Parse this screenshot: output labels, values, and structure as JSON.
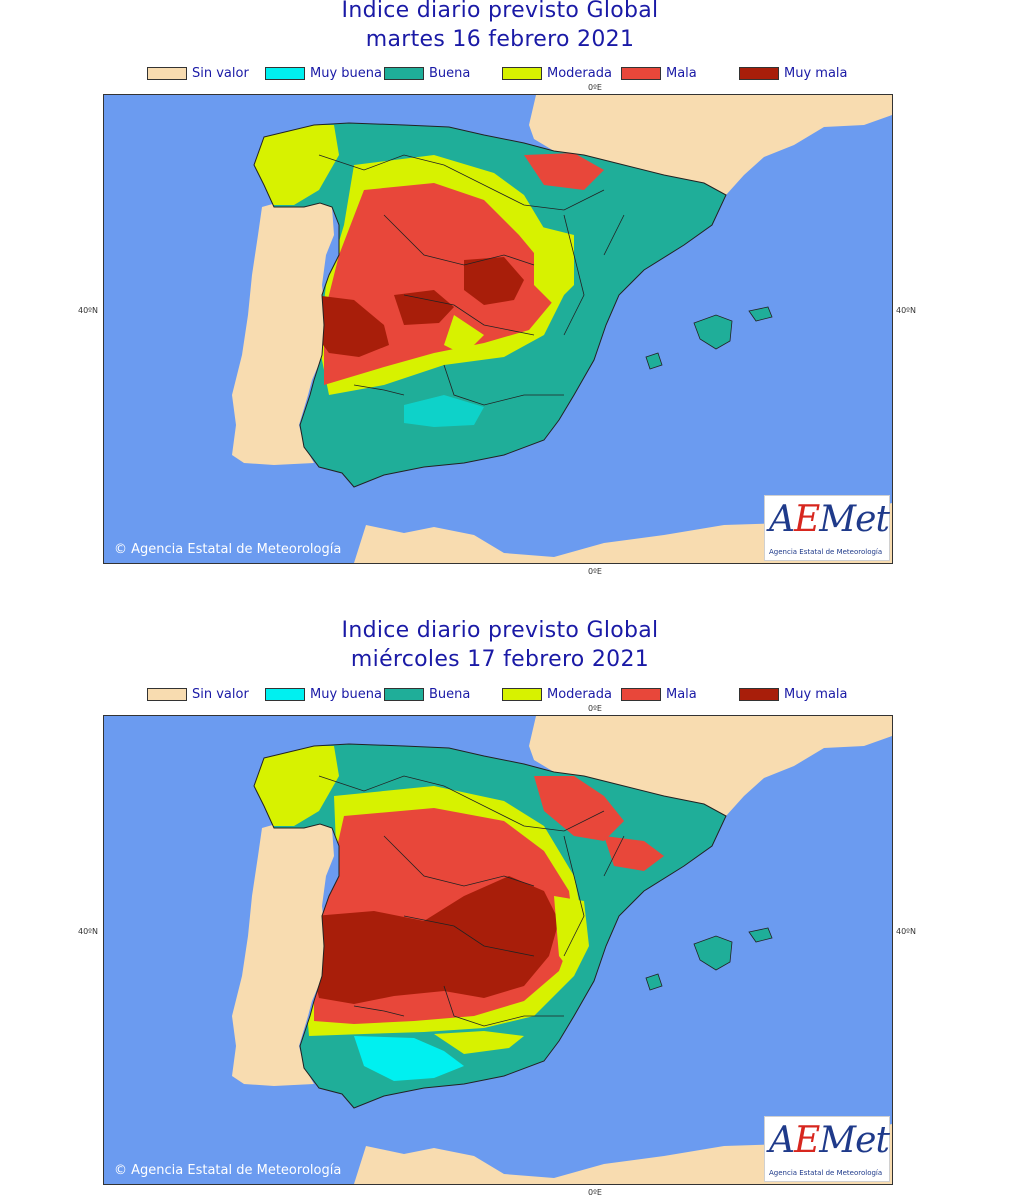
{
  "legend": [
    {
      "label": "Sin valor",
      "color": "#f8dcb0"
    },
    {
      "label": "Muy buena",
      "color": "#00f0f0"
    },
    {
      "label": "Buena",
      "color": "#1fae99"
    },
    {
      "label": "Moderada",
      "color": "#d7f200"
    },
    {
      "label": "Mala",
      "color": "#e8473a"
    },
    {
      "label": "Muy mala",
      "color": "#a81e0a"
    }
  ],
  "colors": {
    "sea": "#6b9bf0",
    "land": "#f8dcb0",
    "buena": "#1fae99",
    "muy_buena": "#00f0f0",
    "moderada": "#d7f200",
    "mala": "#e8473a",
    "muy_mala": "#a81e0a"
  },
  "axis_labels": {
    "lon_top": "0ºE",
    "lon_bottom": "0ºE",
    "lat_left": "40ºN",
    "lat_right": "40ºN"
  },
  "credit": "Agencia Estatal de Meteorología",
  "logo": {
    "word": "AEMet",
    "subtitle": "Agencia Estatal de Meteorología"
  },
  "maps": [
    {
      "title_line1": "Indice diario previsto Global",
      "title_line2": "martes 16 febrero 2021"
    },
    {
      "title_line1": "Indice diario previsto Global",
      "title_line2": "miércoles 17 febrero 2021"
    }
  ]
}
